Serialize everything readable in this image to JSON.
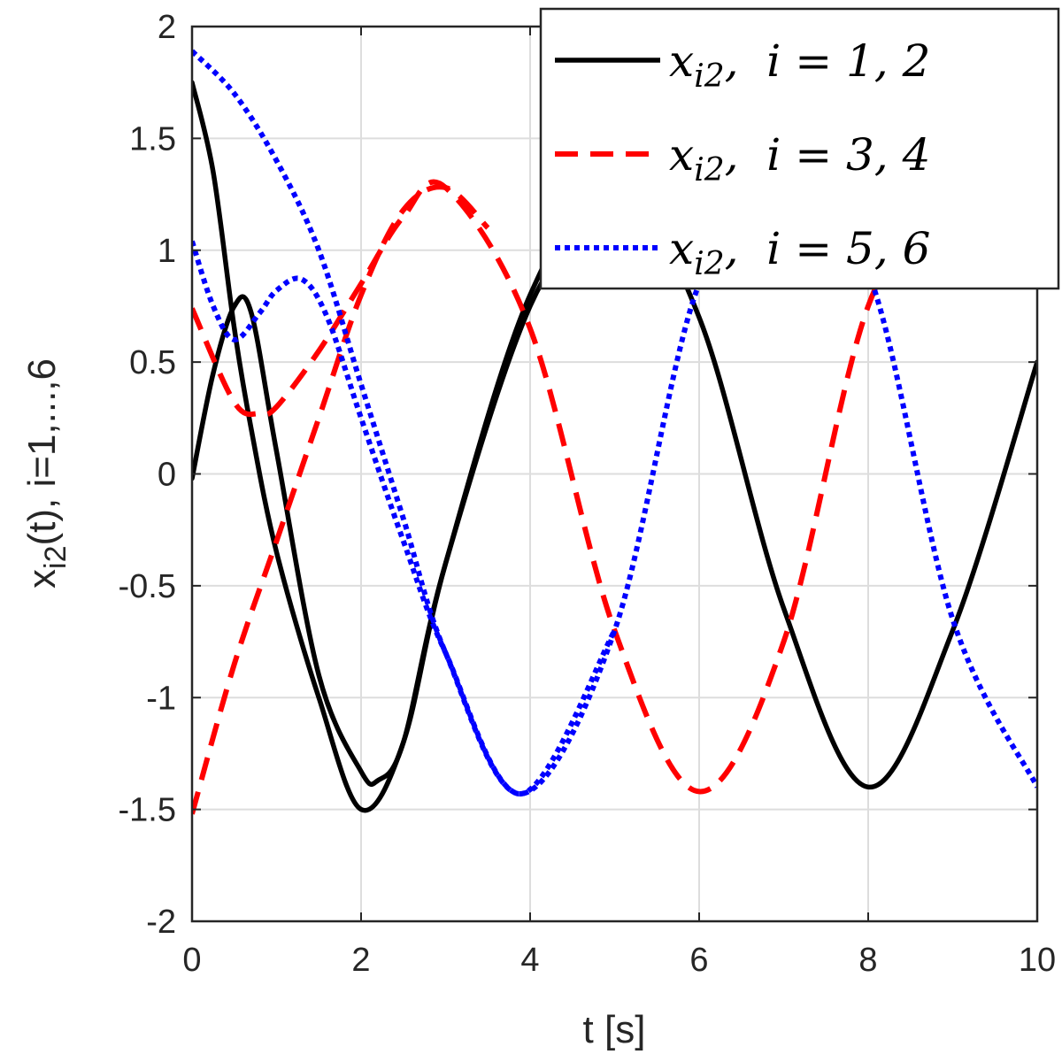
{
  "chart_data": {
    "type": "line",
    "xlabel": "t [s]",
    "ylabel": {
      "prefix": "x",
      "subscript": "i2",
      "suffix": "(t), i=1,...,6"
    },
    "xlim": [
      0,
      10
    ],
    "ylim": [
      -2,
      2
    ],
    "xticks": [
      0,
      2,
      4,
      6,
      8,
      10
    ],
    "yticks": [
      -2,
      -1.5,
      -1,
      -0.5,
      0,
      0.5,
      1,
      1.5,
      2
    ],
    "xtick_labels": [
      "0",
      "2",
      "4",
      "6",
      "8",
      "10"
    ],
    "ytick_labels": [
      "-2",
      "-1.5",
      "-1",
      "-0.5",
      "0",
      "0.5",
      "1",
      "1.5",
      "2"
    ],
    "grid": true,
    "legend_position": "top-right",
    "legend": [
      {
        "label": "x_{i2},  i = 1, 2",
        "color": "#000000",
        "style": "solid"
      },
      {
        "label": "x_{i2},  i = 3, 4",
        "color": "#ff0000",
        "style": "dashed"
      },
      {
        "label": "x_{i2},  i = 5, 6",
        "color": "#0000ff",
        "style": "dotted"
      }
    ],
    "series": [
      {
        "group": 0,
        "color": "#000000",
        "style": "solid",
        "x": [
          0,
          0.25,
          0.5,
          0.7,
          1.0,
          1.5,
          2.0,
          2.5,
          3.0,
          4.0,
          5.0,
          6.0,
          7.0,
          8.0,
          9.0,
          10.0
        ],
        "y": [
          1.75,
          1.35,
          0.65,
          0.2,
          -0.35,
          -1.0,
          -1.5,
          -1.2,
          -0.4,
          0.8,
          1.3,
          0.7,
          -0.6,
          -1.4,
          -0.7,
          0.5
        ]
      },
      {
        "group": 0,
        "color": "#000000",
        "style": "solid",
        "x": [
          0,
          0.25,
          0.5,
          0.7,
          1.0,
          1.5,
          2.0,
          2.2,
          2.5,
          3.0,
          4.0,
          5.0
        ],
        "y": [
          -0.02,
          0.45,
          0.75,
          0.72,
          0.1,
          -0.9,
          -1.33,
          -1.37,
          -1.2,
          -0.4,
          0.75,
          1.3
        ]
      },
      {
        "group": 1,
        "color": "#ff0000",
        "style": "dashed",
        "x": [
          0,
          0.5,
          0.8,
          1.0,
          1.5,
          2.0,
          2.5,
          3.0,
          4.0,
          5.0,
          6.0,
          7.0,
          8.0,
          9.0
        ],
        "y": [
          0.74,
          0.32,
          0.27,
          0.3,
          0.55,
          0.85,
          1.15,
          1.28,
          0.65,
          -0.7,
          -1.42,
          -0.75,
          0.75,
          1.3
        ]
      },
      {
        "group": 1,
        "color": "#ff0000",
        "style": "dashed",
        "x": [
          0,
          0.5,
          1.0,
          1.5,
          2.0,
          2.5,
          3.0,
          3.5
        ],
        "y": [
          -1.52,
          -0.85,
          -0.3,
          0.25,
          0.8,
          1.18,
          1.28,
          1.1
        ]
      },
      {
        "group": 2,
        "color": "#0000ff",
        "style": "dotted",
        "x": [
          0,
          0.5,
          1.0,
          1.5,
          2.0,
          2.5,
          3.0,
          3.9,
          5.0,
          6.0,
          7.0,
          8.0,
          9.0,
          10.0
        ],
        "y": [
          1.89,
          1.7,
          1.4,
          1.0,
          0.4,
          -0.2,
          -0.8,
          -1.43,
          -0.7,
          0.85,
          1.2,
          0.9,
          -0.65,
          -1.4
        ]
      },
      {
        "group": 2,
        "color": "#0000ff",
        "style": "dotted",
        "x": [
          0,
          0.25,
          0.5,
          0.8,
          1.0,
          1.3,
          1.6,
          2.0,
          2.5,
          3.0,
          3.9,
          5.0
        ],
        "y": [
          1.04,
          0.75,
          0.6,
          0.72,
          0.82,
          0.87,
          0.7,
          0.25,
          -0.3,
          -0.8,
          -1.43,
          -0.7
        ]
      }
    ]
  }
}
